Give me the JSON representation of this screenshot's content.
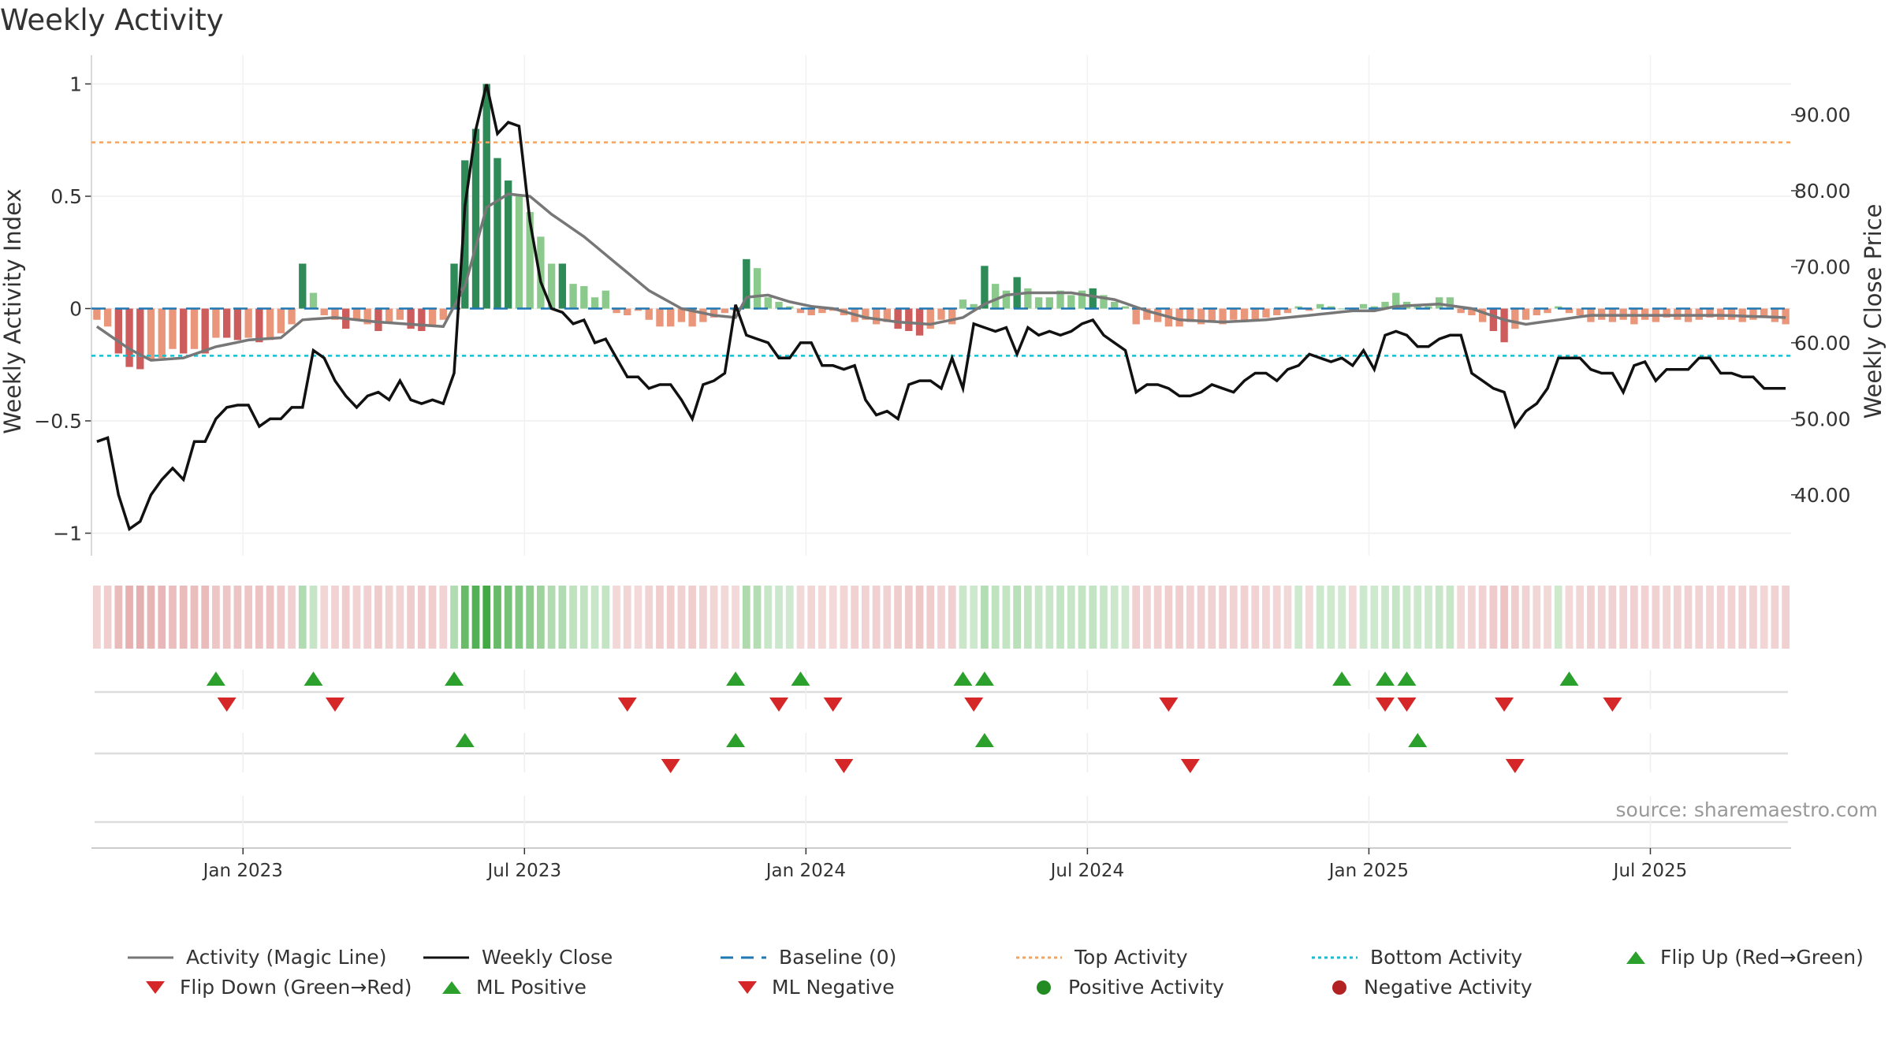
{
  "title": "Weekly Activity",
  "source": "source: sharemaestro.com",
  "colors": {
    "green_dark": "#2e8b57",
    "green_light": "#8cc98c",
    "red_dark": "#cd5c5c",
    "red_light": "#e9967a",
    "magic_line": "#777777",
    "close_line": "#111111",
    "baseline": "#1f77b4",
    "top_line": "#f4a460",
    "bottom_line": "#17becf",
    "marker_up": "#2ca02c",
    "marker_down": "#d62728",
    "pos_dot": "#228b22",
    "neg_dot": "#b22222"
  },
  "legend": [
    {
      "label": "Activity (Magic Line)",
      "kind": "line",
      "color": "#777777"
    },
    {
      "label": "Weekly Close",
      "kind": "line",
      "color": "#111111"
    },
    {
      "label": "Baseline (0)",
      "kind": "dash",
      "color": "#1f77b4"
    },
    {
      "label": "Top Activity",
      "kind": "dot-line",
      "color": "#f4a460"
    },
    {
      "label": "Bottom Activity",
      "kind": "dot-line",
      "color": "#17becf"
    },
    {
      "label": "Flip Up (Red→Green)",
      "kind": "tri-up",
      "color": "#2ca02c"
    },
    {
      "label": "Flip Down (Green→Red)",
      "kind": "tri-down",
      "color": "#d62728"
    },
    {
      "label": "ML Positive",
      "kind": "tri-up",
      "color": "#2ca02c"
    },
    {
      "label": "ML Negative",
      "kind": "tri-down",
      "color": "#d62728"
    },
    {
      "label": "Positive Activity",
      "kind": "circle",
      "color": "#228b22"
    },
    {
      "label": "Negative Activity",
      "kind": "circle",
      "color": "#b22222"
    }
  ],
  "chart_data": {
    "type": "bar",
    "title": "Weekly Activity",
    "ylabel": "Weekly Activity Index",
    "y2label": "Weekly Close Price",
    "ylim": [
      -1.1,
      1.1
    ],
    "y2lim": [
      32,
      97
    ],
    "yticks": [
      {
        "v": 1,
        "label": "1"
      },
      {
        "v": 0.5,
        "label": "0.5"
      },
      {
        "v": 0,
        "label": "0"
      },
      {
        "v": -0.5,
        "label": "−0.5"
      },
      {
        "v": -1,
        "label": "−1"
      }
    ],
    "y2ticks": [
      {
        "v": 90,
        "label": "90.00"
      },
      {
        "v": 80,
        "label": "80.00"
      },
      {
        "v": 70,
        "label": "70.00"
      },
      {
        "v": 60,
        "label": "60.00"
      },
      {
        "v": 50,
        "label": "50.00"
      },
      {
        "v": 40,
        "label": "40.00"
      }
    ],
    "x_range": [
      0,
      157
    ],
    "xticks": [
      {
        "v": 14,
        "label": "Jan 2023"
      },
      {
        "v": 40,
        "label": "Jul 2023"
      },
      {
        "v": 66,
        "label": "Jan 2024"
      },
      {
        "v": 92,
        "label": "Jul 2024"
      },
      {
        "v": 118,
        "label": "Jan 2025"
      },
      {
        "v": 144,
        "label": "Jul 2025"
      }
    ],
    "top_activity": 0.74,
    "bottom_activity": -0.21,
    "baseline": 0,
    "activity_keyframes": [
      [
        0,
        -0.05
      ],
      [
        1,
        -0.08
      ],
      [
        2,
        -0.2
      ],
      [
        3,
        -0.26
      ],
      [
        4,
        -0.27
      ],
      [
        5,
        -0.23
      ],
      [
        6,
        -0.22
      ],
      [
        7,
        -0.18
      ],
      [
        8,
        -0.2
      ],
      [
        9,
        -0.18
      ],
      [
        10,
        -0.2
      ],
      [
        11,
        -0.13
      ],
      [
        12,
        -0.13
      ],
      [
        13,
        -0.14
      ],
      [
        14,
        -0.13
      ],
      [
        15,
        -0.15
      ],
      [
        16,
        -0.14
      ],
      [
        17,
        -0.11
      ],
      [
        18,
        -0.07
      ],
      [
        19,
        0.2
      ],
      [
        20,
        0.07
      ],
      [
        21,
        -0.03
      ],
      [
        22,
        -0.05
      ],
      [
        23,
        -0.09
      ],
      [
        24,
        -0.05
      ],
      [
        25,
        -0.07
      ],
      [
        26,
        -0.1
      ],
      [
        27,
        -0.06
      ],
      [
        28,
        -0.05
      ],
      [
        29,
        -0.09
      ],
      [
        30,
        -0.1
      ],
      [
        31,
        -0.08
      ],
      [
        32,
        -0.05
      ],
      [
        33,
        0.2
      ],
      [
        34,
        0.66
      ],
      [
        35,
        0.8
      ],
      [
        36,
        1.0
      ],
      [
        37,
        0.67
      ],
      [
        38,
        0.57
      ],
      [
        39,
        0.5
      ],
      [
        40,
        0.43
      ],
      [
        41,
        0.32
      ],
      [
        42,
        0.2
      ],
      [
        43,
        0.2
      ],
      [
        44,
        0.11
      ],
      [
        45,
        0.1
      ],
      [
        46,
        0.05
      ],
      [
        47,
        0.08
      ],
      [
        48,
        -0.02
      ],
      [
        49,
        -0.03
      ],
      [
        50,
        -0.01
      ],
      [
        51,
        -0.05
      ],
      [
        52,
        -0.08
      ],
      [
        53,
        -0.08
      ],
      [
        54,
        -0.06
      ],
      [
        55,
        -0.08
      ],
      [
        56,
        -0.06
      ],
      [
        57,
        -0.04
      ],
      [
        58,
        -0.02
      ],
      [
        59,
        -0.01
      ],
      [
        60,
        0.22
      ],
      [
        61,
        0.18
      ],
      [
        62,
        0.05
      ],
      [
        63,
        0.03
      ],
      [
        64,
        0.01
      ],
      [
        65,
        -0.02
      ],
      [
        66,
        -0.03
      ],
      [
        67,
        -0.02
      ],
      [
        68,
        -0.01
      ],
      [
        69,
        -0.03
      ],
      [
        70,
        -0.06
      ],
      [
        71,
        -0.05
      ],
      [
        72,
        -0.07
      ],
      [
        73,
        -0.06
      ],
      [
        74,
        -0.09
      ],
      [
        75,
        -0.1
      ],
      [
        76,
        -0.12
      ],
      [
        77,
        -0.09
      ],
      [
        78,
        -0.05
      ],
      [
        79,
        -0.07
      ],
      [
        80,
        0.04
      ],
      [
        81,
        0.02
      ],
      [
        82,
        0.19
      ],
      [
        83,
        0.11
      ],
      [
        84,
        0.08
      ],
      [
        85,
        0.14
      ],
      [
        86,
        0.09
      ],
      [
        87,
        0.05
      ],
      [
        88,
        0.05
      ],
      [
        89,
        0.08
      ],
      [
        90,
        0.06
      ],
      [
        91,
        0.08
      ],
      [
        92,
        0.09
      ],
      [
        93,
        0.06
      ],
      [
        94,
        0.03
      ],
      [
        95,
        0.01
      ],
      [
        96,
        -0.07
      ],
      [
        97,
        -0.05
      ],
      [
        98,
        -0.06
      ],
      [
        99,
        -0.08
      ],
      [
        100,
        -0.08
      ],
      [
        101,
        -0.06
      ],
      [
        102,
        -0.07
      ],
      [
        103,
        -0.06
      ],
      [
        104,
        -0.07
      ],
      [
        105,
        -0.05
      ],
      [
        106,
        -0.06
      ],
      [
        107,
        -0.05
      ],
      [
        108,
        -0.04
      ],
      [
        109,
        -0.03
      ],
      [
        110,
        -0.02
      ],
      [
        111,
        0.01
      ],
      [
        112,
        -0.01
      ],
      [
        113,
        0.02
      ],
      [
        114,
        0.01
      ],
      [
        115,
        0.0
      ],
      [
        116,
        -0.01
      ],
      [
        117,
        0.02
      ],
      [
        118,
        0.01
      ],
      [
        119,
        0.03
      ],
      [
        120,
        0.07
      ],
      [
        121,
        0.03
      ],
      [
        122,
        0.02
      ],
      [
        123,
        0.01
      ],
      [
        124,
        0.05
      ],
      [
        125,
        0.05
      ],
      [
        126,
        -0.02
      ],
      [
        127,
        -0.03
      ],
      [
        128,
        -0.06
      ],
      [
        129,
        -0.1
      ],
      [
        130,
        -0.15
      ],
      [
        131,
        -0.09
      ],
      [
        132,
        -0.05
      ],
      [
        133,
        -0.03
      ],
      [
        134,
        -0.02
      ],
      [
        135,
        0.01
      ],
      [
        136,
        -0.02
      ],
      [
        137,
        -0.03
      ],
      [
        138,
        -0.06
      ],
      [
        139,
        -0.05
      ],
      [
        140,
        -0.06
      ],
      [
        141,
        -0.05
      ],
      [
        142,
        -0.07
      ],
      [
        143,
        -0.05
      ],
      [
        144,
        -0.06
      ],
      [
        145,
        -0.04
      ],
      [
        146,
        -0.05
      ],
      [
        147,
        -0.06
      ],
      [
        148,
        -0.05
      ],
      [
        149,
        -0.04
      ],
      [
        150,
        -0.05
      ],
      [
        151,
        -0.05
      ],
      [
        152,
        -0.06
      ],
      [
        153,
        -0.05
      ],
      [
        154,
        -0.04
      ],
      [
        155,
        -0.06
      ],
      [
        156,
        -0.07
      ]
    ],
    "magic_keyframes": [
      [
        0,
        -0.08
      ],
      [
        3,
        -0.18
      ],
      [
        5,
        -0.23
      ],
      [
        8,
        -0.22
      ],
      [
        11,
        -0.17
      ],
      [
        14,
        -0.14
      ],
      [
        17,
        -0.13
      ],
      [
        19,
        -0.05
      ],
      [
        22,
        -0.04
      ],
      [
        26,
        -0.06
      ],
      [
        29,
        -0.07
      ],
      [
        32,
        -0.08
      ],
      [
        34,
        0.1
      ],
      [
        36,
        0.45
      ],
      [
        38,
        0.51
      ],
      [
        40,
        0.5
      ],
      [
        42,
        0.42
      ],
      [
        45,
        0.32
      ],
      [
        48,
        0.2
      ],
      [
        51,
        0.08
      ],
      [
        54,
        0.0
      ],
      [
        57,
        -0.03
      ],
      [
        59,
        -0.04
      ],
      [
        60,
        0.05
      ],
      [
        62,
        0.06
      ],
      [
        64,
        0.03
      ],
      [
        66,
        0.01
      ],
      [
        68,
        0.0
      ],
      [
        71,
        -0.04
      ],
      [
        74,
        -0.06
      ],
      [
        77,
        -0.07
      ],
      [
        80,
        -0.04
      ],
      [
        82,
        0.02
      ],
      [
        84,
        0.06
      ],
      [
        86,
        0.07
      ],
      [
        90,
        0.07
      ],
      [
        94,
        0.04
      ],
      [
        97,
        -0.01
      ],
      [
        100,
        -0.05
      ],
      [
        104,
        -0.06
      ],
      [
        108,
        -0.05
      ],
      [
        112,
        -0.03
      ],
      [
        116,
        -0.01
      ],
      [
        118,
        -0.01
      ],
      [
        120,
        0.01
      ],
      [
        124,
        0.02
      ],
      [
        127,
        0.0
      ],
      [
        130,
        -0.05
      ],
      [
        132,
        -0.07
      ],
      [
        135,
        -0.05
      ],
      [
        138,
        -0.03
      ],
      [
        142,
        -0.03
      ],
      [
        146,
        -0.03
      ],
      [
        150,
        -0.03
      ],
      [
        156,
        -0.04
      ]
    ],
    "close_keyframes": [
      [
        0,
        47
      ],
      [
        1,
        47.5
      ],
      [
        2,
        40
      ],
      [
        3,
        35.5
      ],
      [
        4,
        36.5
      ],
      [
        5,
        40
      ],
      [
        6,
        42
      ],
      [
        7,
        43.5
      ],
      [
        8,
        42
      ],
      [
        9,
        47
      ],
      [
        10,
        47
      ],
      [
        11,
        50
      ],
      [
        12,
        51.5
      ],
      [
        13,
        51.8
      ],
      [
        14,
        51.8
      ],
      [
        15,
        49
      ],
      [
        16,
        50
      ],
      [
        17,
        50
      ],
      [
        18,
        51.5
      ],
      [
        19,
        51.5
      ],
      [
        20,
        59
      ],
      [
        21,
        58
      ],
      [
        22,
        55
      ],
      [
        23,
        53
      ],
      [
        24,
        51.5
      ],
      [
        25,
        53
      ],
      [
        26,
        53.5
      ],
      [
        27,
        52.5
      ],
      [
        28,
        55
      ],
      [
        29,
        52.5
      ],
      [
        30,
        52
      ],
      [
        31,
        52.5
      ],
      [
        32,
        52
      ],
      [
        33,
        56
      ],
      [
        34,
        78
      ],
      [
        35,
        88
      ],
      [
        36,
        94
      ],
      [
        37,
        87.5
      ],
      [
        38,
        89
      ],
      [
        39,
        88.5
      ],
      [
        40,
        76
      ],
      [
        41,
        68
      ],
      [
        42,
        64.5
      ],
      [
        43,
        64
      ],
      [
        44,
        62.5
      ],
      [
        45,
        63
      ],
      [
        46,
        60
      ],
      [
        47,
        60.5
      ],
      [
        48,
        58
      ],
      [
        49,
        55.5
      ],
      [
        50,
        55.5
      ],
      [
        51,
        54
      ],
      [
        52,
        54.5
      ],
      [
        53,
        54.5
      ],
      [
        54,
        52.5
      ],
      [
        55,
        50
      ],
      [
        56,
        54.5
      ],
      [
        57,
        55
      ],
      [
        58,
        56
      ],
      [
        59,
        65
      ],
      [
        60,
        61
      ],
      [
        61,
        60.5
      ],
      [
        62,
        60
      ],
      [
        63,
        58
      ],
      [
        64,
        58
      ],
      [
        65,
        60
      ],
      [
        66,
        60
      ],
      [
        67,
        57
      ],
      [
        68,
        57
      ],
      [
        69,
        56.5
      ],
      [
        70,
        57
      ],
      [
        71,
        52.5
      ],
      [
        72,
        50.5
      ],
      [
        73,
        51
      ],
      [
        74,
        50
      ],
      [
        75,
        54.5
      ],
      [
        76,
        55
      ],
      [
        77,
        55
      ],
      [
        78,
        54
      ],
      [
        79,
        58
      ],
      [
        80,
        54
      ],
      [
        81,
        62.5
      ],
      [
        82,
        62
      ],
      [
        83,
        61.5
      ],
      [
        84,
        62
      ],
      [
        85,
        58.5
      ],
      [
        86,
        62
      ],
      [
        87,
        61
      ],
      [
        88,
        61.5
      ],
      [
        89,
        61
      ],
      [
        90,
        61.5
      ],
      [
        91,
        62.5
      ],
      [
        92,
        63
      ],
      [
        93,
        61
      ],
      [
        94,
        60
      ],
      [
        95,
        59
      ],
      [
        96,
        53.5
      ],
      [
        97,
        54.5
      ],
      [
        98,
        54.5
      ],
      [
        99,
        54
      ],
      [
        100,
        53
      ],
      [
        101,
        53
      ],
      [
        102,
        53.5
      ],
      [
        103,
        54.5
      ],
      [
        104,
        54
      ],
      [
        105,
        53.5
      ],
      [
        106,
        55
      ],
      [
        107,
        56
      ],
      [
        108,
        56
      ],
      [
        109,
        55
      ],
      [
        110,
        56.5
      ],
      [
        111,
        57
      ],
      [
        112,
        58.5
      ],
      [
        113,
        58
      ],
      [
        114,
        57.5
      ],
      [
        115,
        58
      ],
      [
        116,
        57
      ],
      [
        117,
        59
      ],
      [
        118,
        56.5
      ],
      [
        119,
        61
      ],
      [
        120,
        61.5
      ],
      [
        121,
        61
      ],
      [
        122,
        59.5
      ],
      [
        123,
        59.5
      ],
      [
        124,
        60.5
      ],
      [
        125,
        61
      ],
      [
        126,
        61
      ],
      [
        127,
        56
      ],
      [
        128,
        55
      ],
      [
        129,
        54
      ],
      [
        130,
        53.5
      ],
      [
        131,
        49
      ],
      [
        132,
        51
      ],
      [
        133,
        52
      ],
      [
        134,
        54
      ],
      [
        135,
        58
      ],
      [
        136,
        58
      ],
      [
        137,
        58
      ],
      [
        138,
        56.5
      ],
      [
        139,
        56
      ],
      [
        140,
        56
      ],
      [
        141,
        53.5
      ],
      [
        142,
        57
      ],
      [
        143,
        57.5
      ],
      [
        144,
        55
      ],
      [
        145,
        56.5
      ],
      [
        146,
        56.5
      ],
      [
        147,
        56.5
      ],
      [
        148,
        58
      ],
      [
        149,
        58
      ],
      [
        150,
        56
      ],
      [
        151,
        56
      ],
      [
        152,
        55.5
      ],
      [
        153,
        55.5
      ],
      [
        154,
        54
      ],
      [
        155,
        54
      ],
      [
        156,
        54
      ]
    ],
    "flip_up": [
      11,
      20,
      33,
      59,
      65,
      80,
      82,
      115,
      119,
      121,
      136
    ],
    "flip_down": [
      12,
      22,
      49,
      63,
      68,
      81,
      99,
      119,
      121,
      130,
      140
    ],
    "ml_positive": [
      34,
      59,
      82,
      122
    ],
    "ml_negative": [
      53,
      69,
      101,
      131
    ]
  }
}
